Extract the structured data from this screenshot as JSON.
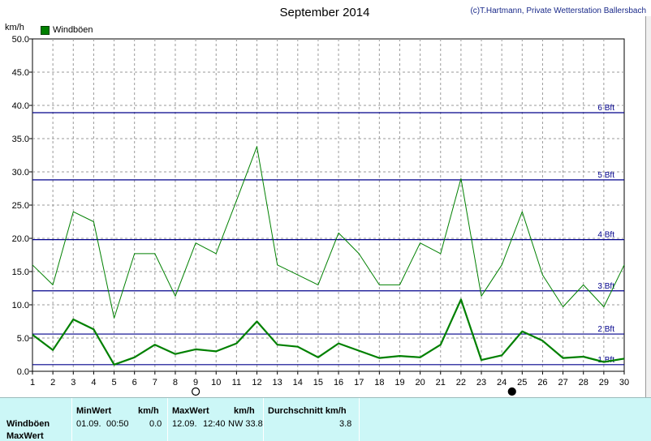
{
  "header": {
    "title": "September 2014",
    "copyright": "(c)T.Hartmann, Private Wetterstation Ballersbach",
    "unit": "km/h",
    "legend": "Windböen"
  },
  "colors": {
    "series": "#008000",
    "bft_line": "#00008b",
    "grid": "#9a9a9a",
    "table_bg": "#ccf7f7"
  },
  "chart_data": {
    "type": "line",
    "title": "September 2014",
    "ylabel": "km/h",
    "ylim": [
      0,
      50
    ],
    "xlim": [
      1,
      30
    ],
    "y_ticks": [
      "0.0",
      "5.0",
      "10.0",
      "15.0",
      "20.0",
      "25.0",
      "30.0",
      "35.0",
      "40.0",
      "45.0",
      "50.0"
    ],
    "x_ticks": [
      "1",
      "2",
      "3",
      "4",
      "5",
      "6",
      "7",
      "8",
      "9",
      "10",
      "11",
      "12",
      "13",
      "14",
      "15",
      "16",
      "17",
      "18",
      "19",
      "20",
      "21",
      "22",
      "23",
      "24",
      "25",
      "26",
      "27",
      "28",
      "29",
      "30"
    ],
    "grid": true,
    "x": [
      1,
      2,
      3,
      4,
      5,
      6,
      7,
      8,
      9,
      10,
      11,
      12,
      13,
      14,
      15,
      16,
      17,
      18,
      19,
      20,
      21,
      22,
      23,
      24,
      25,
      26,
      27,
      28,
      29,
      30
    ],
    "series": [
      {
        "name": "Windböen",
        "role": "max",
        "values": [
          16.0,
          13.0,
          24.0,
          22.5,
          8.0,
          17.7,
          17.7,
          11.3,
          19.3,
          17.7,
          25.7,
          33.8,
          16.0,
          14.5,
          13.0,
          20.8,
          17.7,
          13.0,
          13.0,
          19.3,
          17.7,
          29.0,
          11.3,
          16.0,
          24.0,
          14.5,
          9.7,
          13.0,
          9.7,
          16.0
        ]
      },
      {
        "role": "average",
        "values": [
          5.5,
          3.2,
          7.8,
          6.3,
          1.0,
          2.1,
          4.0,
          2.6,
          3.3,
          3.0,
          4.2,
          7.5,
          4.0,
          3.7,
          2.1,
          4.2,
          3.1,
          2.0,
          2.3,
          2.1,
          4.0,
          10.8,
          1.7,
          2.4,
          6.0,
          4.6,
          2.0,
          2.2,
          1.4,
          1.9
        ]
      }
    ],
    "reference_lines": [
      {
        "label": "1 Bft",
        "value": 1.0
      },
      {
        "label": "2 Bft",
        "value": 5.6
      },
      {
        "label": "3 Bft",
        "value": 12.1
      },
      {
        "label": "4 Bft",
        "value": 19.8
      },
      {
        "label": "5 Bft",
        "value": 28.8
      },
      {
        "label": "6 Bft",
        "value": 38.9
      }
    ],
    "moon_markers": [
      {
        "x": 9,
        "phase": "full"
      },
      {
        "x": 24.5,
        "phase": "new"
      }
    ]
  },
  "table": {
    "row_label": "Windböen",
    "row_label2": "MaxWert",
    "min_header": "MinWert",
    "min_unit": "km/h",
    "min_date": "01.09.",
    "min_time": "00:50",
    "min_value": "0.0",
    "max_header": "MaxWert",
    "max_unit": "km/h",
    "max_date": "12.09.",
    "max_time": "12:40",
    "max_dir_value": "NW 33.8",
    "avg_header": "Durchschnitt km/h",
    "avg_value": "3.8"
  }
}
